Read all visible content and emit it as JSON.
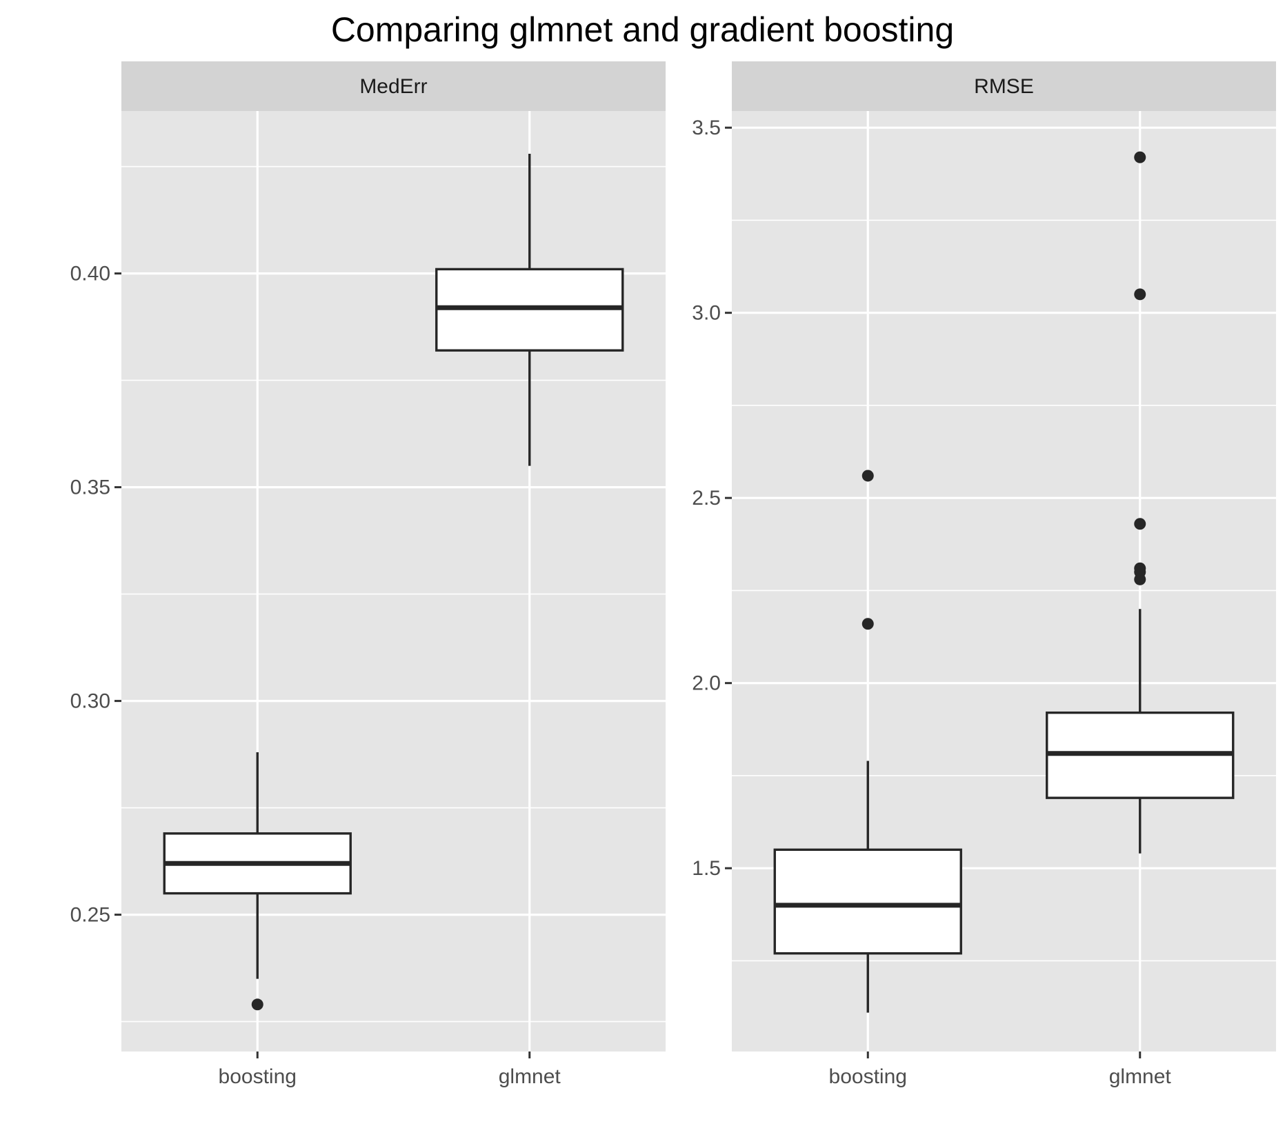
{
  "title": "Comparing glmnet and gradient boosting",
  "colors": {
    "panel_bg": "#e5e5e5",
    "strip_bg": "#d3d3d3",
    "grid": "#ffffff",
    "box_fill": "#ffffff",
    "box_stroke": "#262626"
  },
  "chart_data": [
    {
      "type": "boxplot",
      "facet": "MedErr",
      "categories": [
        "boosting",
        "glmnet"
      ],
      "ylim": [
        0.218,
        0.438
      ],
      "yticks": [
        0.25,
        0.3,
        0.35,
        0.4
      ],
      "ytick_labels": [
        "0.25",
        "0.30",
        "0.35",
        "0.40"
      ],
      "grid": true,
      "boxes": [
        {
          "category": "boosting",
          "whisker_low": 0.235,
          "q1": 0.255,
          "median": 0.262,
          "q3": 0.269,
          "whisker_high": 0.288,
          "outliers": [
            0.229
          ]
        },
        {
          "category": "glmnet",
          "whisker_low": 0.355,
          "q1": 0.382,
          "median": 0.392,
          "q3": 0.401,
          "whisker_high": 0.428,
          "outliers": []
        }
      ]
    },
    {
      "type": "boxplot",
      "facet": "RMSE",
      "categories": [
        "boosting",
        "glmnet"
      ],
      "ylim": [
        1.005,
        3.545
      ],
      "yticks": [
        1.5,
        2.0,
        2.5,
        3.0,
        3.5
      ],
      "ytick_labels": [
        "1.5",
        "2.0",
        "2.5",
        "3.0",
        "3.5"
      ],
      "grid": true,
      "boxes": [
        {
          "category": "boosting",
          "whisker_low": 1.11,
          "q1": 1.27,
          "median": 1.4,
          "q3": 1.55,
          "whisker_high": 1.79,
          "outliers": [
            2.16,
            2.56
          ]
        },
        {
          "category": "glmnet",
          "whisker_low": 1.54,
          "q1": 1.69,
          "median": 1.81,
          "q3": 1.92,
          "whisker_high": 2.2,
          "outliers": [
            2.28,
            2.3,
            2.31,
            2.43,
            3.05,
            3.42
          ]
        }
      ]
    }
  ]
}
